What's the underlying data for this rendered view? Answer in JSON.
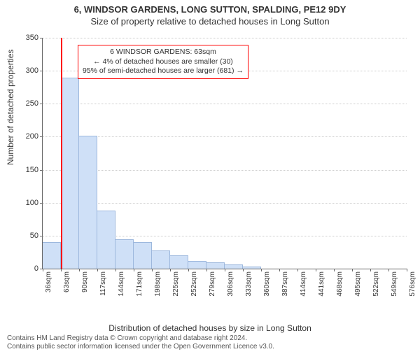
{
  "header": {
    "title1": "6, WINDSOR GARDENS, LONG SUTTON, SPALDING, PE12 9DY",
    "title2": "Size of property relative to detached houses in Long Sutton"
  },
  "axes": {
    "ylabel": "Number of detached properties",
    "xlabel": "Distribution of detached houses by size in Long Sutton",
    "label_fontsize": 12
  },
  "chart": {
    "type": "histogram",
    "background_color": "#ffffff",
    "grid_color": "#cccccc",
    "axis_color": "#666666",
    "bar_fill": "#cfe0f7",
    "bar_stroke": "#9db8dd",
    "bar_width_ratio": 1.0,
    "ylim": [
      0,
      350
    ],
    "ytick_step": 50,
    "yticks": [
      0,
      50,
      100,
      150,
      200,
      250,
      300,
      350
    ],
    "xticks": [
      36,
      63,
      90,
      117,
      144,
      171,
      198,
      225,
      252,
      279,
      306,
      333,
      360,
      387,
      414,
      441,
      468,
      495,
      522,
      549,
      576
    ],
    "xtick_unit": "sqm",
    "values": [
      40,
      290,
      202,
      88,
      45,
      40,
      28,
      20,
      12,
      10,
      6,
      3,
      0,
      0,
      0,
      0,
      0,
      0,
      0,
      0
    ],
    "marker": {
      "x_value": 63,
      "color": "#ff0000",
      "width": 2
    }
  },
  "annotation": {
    "border_color": "#ff0000",
    "line1": "6 WINDSOR GARDENS: 63sqm",
    "line2": "← 4% of detached houses are smaller (30)",
    "line3": "95% of semi-detached houses are larger (681) →"
  },
  "footer": {
    "line1": "Contains HM Land Registry data © Crown copyright and database right 2024.",
    "line2": "Contains public sector information licensed under the Open Government Licence v3.0."
  }
}
